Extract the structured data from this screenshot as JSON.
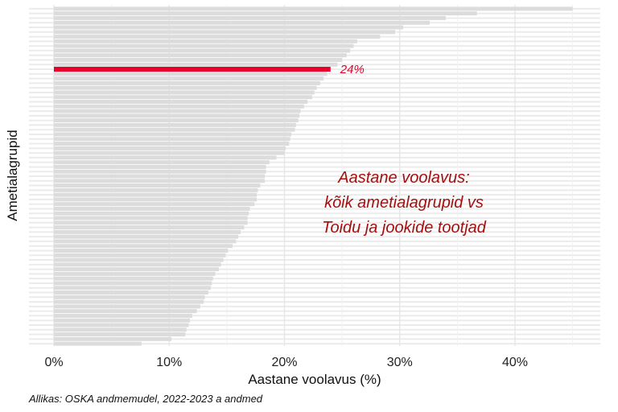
{
  "chart_data": {
    "type": "bar",
    "orientation": "horizontal",
    "xlabel": "Aastane voolavus (%)",
    "ylabel": "Ametialagrupid",
    "xlim": [
      0,
      47
    ],
    "xticks": [
      0,
      10,
      20,
      30,
      40
    ],
    "xtick_labels": [
      "0%",
      "10%",
      "20%",
      "30%",
      "40%"
    ],
    "grid": true,
    "values": [
      45,
      36.7,
      34,
      32.6,
      30.3,
      29.6,
      28.3,
      26.3,
      26,
      25.7,
      25.4,
      25,
      24.6,
      24,
      23.7,
      23.4,
      23.1,
      22.8,
      22.6,
      22.4,
      22,
      21.7,
      21.4,
      21.3,
      21.2,
      21,
      20.9,
      20.6,
      20.5,
      20.4,
      20.1,
      20,
      19.3,
      18.7,
      18.4,
      18.4,
      18.3,
      18.3,
      17.9,
      17.7,
      17.6,
      17.6,
      17.4,
      17,
      16.9,
      16.8,
      16.8,
      16.5,
      16.2,
      16,
      15.8,
      15.5,
      15.1,
      14.9,
      14.7,
      14.5,
      14.3,
      14,
      13.8,
      13.7,
      13.6,
      13.4,
      13.1,
      13,
      12.7,
      12.4,
      12,
      11.8,
      11.7,
      11.5,
      11.4,
      10.2,
      7.6
    ],
    "highlight": {
      "index": 13,
      "value": 24,
      "label": "24%",
      "color": "#e4002b"
    },
    "annotation": {
      "lines": [
        "Aastane voolavus:",
        "kõik ametialagrupid vs",
        "Toidu ja jookide tootjad"
      ],
      "color": "#a50f0f"
    },
    "bar_color": "#dcdcdc"
  },
  "caption": "Allikas: OSKA andmemudel, 2022-2023 a andmed"
}
